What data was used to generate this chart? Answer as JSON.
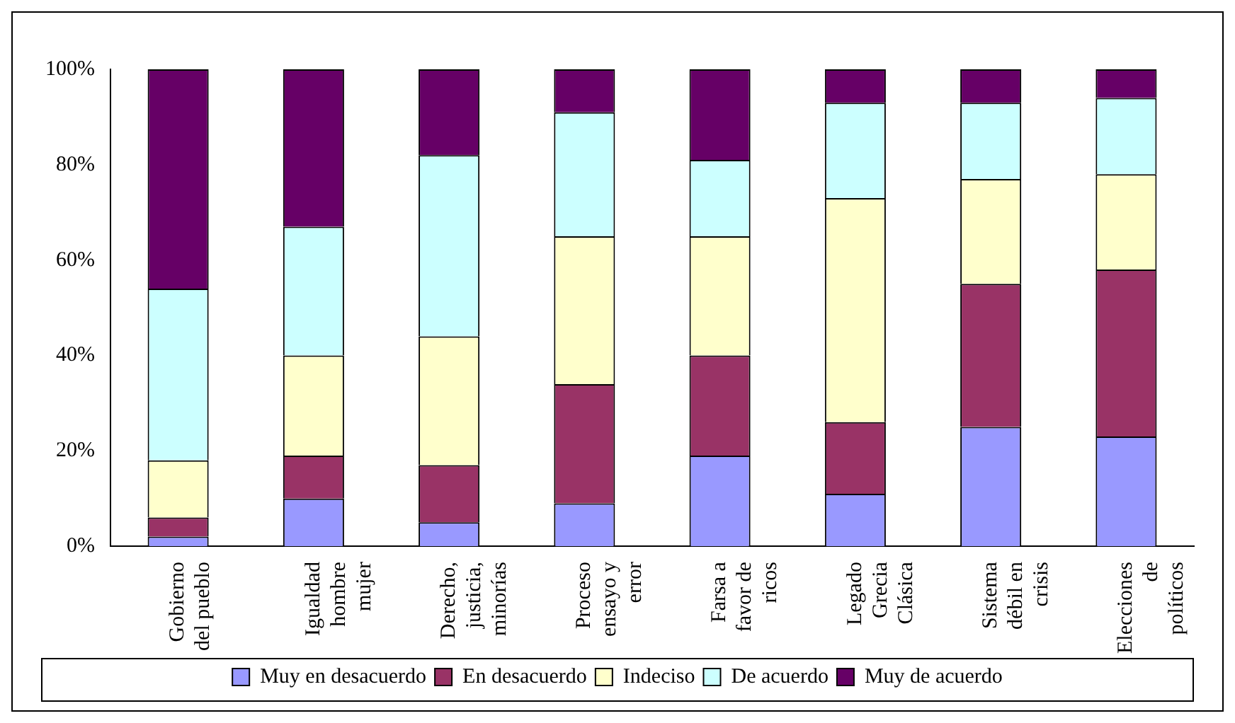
{
  "chart_data": {
    "type": "bar",
    "stacked": true,
    "categories": [
      "Gobierno del pueblo",
      "Igualdad hombre mujer",
      "Derecho, justicia, minorías",
      "Proceso ensayo y error",
      "Farsa a favor de ricos",
      "Legado Grecia Clásica",
      "Sistema débil en crisis",
      "Elecciones de políticos"
    ],
    "series": [
      {
        "name": "Muy en desacuerdo",
        "color": "#9999ff",
        "values": [
          2,
          10,
          5,
          9,
          19,
          11,
          25,
          23
        ]
      },
      {
        "name": "En desacuerdo",
        "color": "#993366",
        "values": [
          4,
          9,
          12,
          25,
          21,
          15,
          30,
          35
        ]
      },
      {
        "name": "Indeciso",
        "color": "#ffffcc",
        "values": [
          12,
          21,
          27,
          31,
          25,
          47,
          22,
          20
        ]
      },
      {
        "name": "De acuerdo",
        "color": "#ccffff",
        "values": [
          36,
          27,
          38,
          26,
          16,
          20,
          16,
          16
        ]
      },
      {
        "name": "Muy de acuerdo",
        "color": "#660066",
        "values": [
          46,
          33,
          18,
          9,
          19,
          7,
          7,
          6
        ]
      }
    ],
    "ylim": [
      0,
      100
    ],
    "yticks": [
      {
        "value": 0,
        "label": "0%"
      },
      {
        "value": 20,
        "label": "20%"
      },
      {
        "value": 40,
        "label": "40%"
      },
      {
        "value": 60,
        "label": "60%"
      },
      {
        "value": 80,
        "label": "80%"
      },
      {
        "value": 100,
        "label": "100%"
      }
    ],
    "grid": false,
    "legend": "bottom"
  }
}
